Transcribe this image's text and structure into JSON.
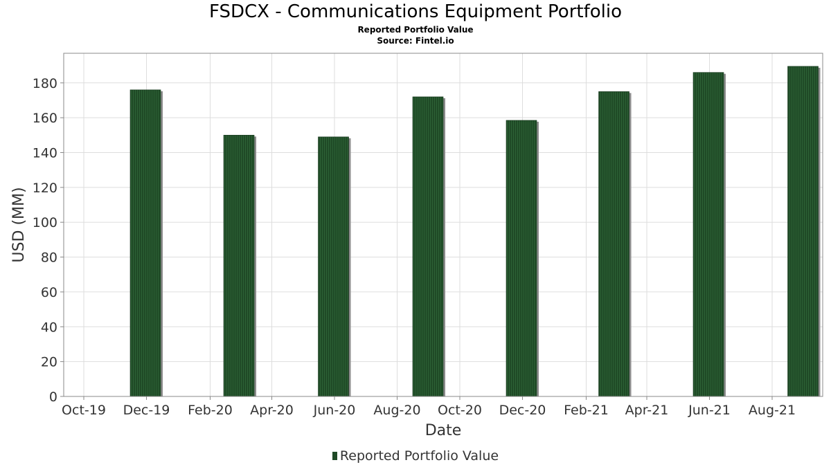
{
  "chart_data": {
    "type": "bar",
    "title": "FSDCX - Communications Equipment Portfolio",
    "subtitle": "Reported Portfolio Value",
    "source": "Source: Fintel.io",
    "xlabel": "Date",
    "ylabel": "USD (MM)",
    "ylim": [
      0,
      197
    ],
    "yticks": [
      0,
      20,
      40,
      60,
      80,
      100,
      120,
      140,
      160,
      180
    ],
    "xticks": [
      "Oct-19",
      "Dec-19",
      "Feb-20",
      "Apr-20",
      "Jun-20",
      "Aug-20",
      "Oct-20",
      "Dec-20",
      "Feb-21",
      "Apr-21",
      "Jun-21",
      "Aug-21"
    ],
    "grid": true,
    "legend_position": "bottom",
    "series": [
      {
        "name": "Reported Portfolio Value",
        "color": "#1f4a26",
        "points": [
          {
            "date": "2019-11-30",
            "value": 176
          },
          {
            "date": "2020-02-29",
            "value": 150
          },
          {
            "date": "2020-05-31",
            "value": 149
          },
          {
            "date": "2020-08-31",
            "value": 172
          },
          {
            "date": "2020-11-30",
            "value": 158.5
          },
          {
            "date": "2021-02-28",
            "value": 175
          },
          {
            "date": "2021-05-31",
            "value": 186
          },
          {
            "date": "2021-08-31",
            "value": 189.5
          }
        ]
      }
    ]
  }
}
